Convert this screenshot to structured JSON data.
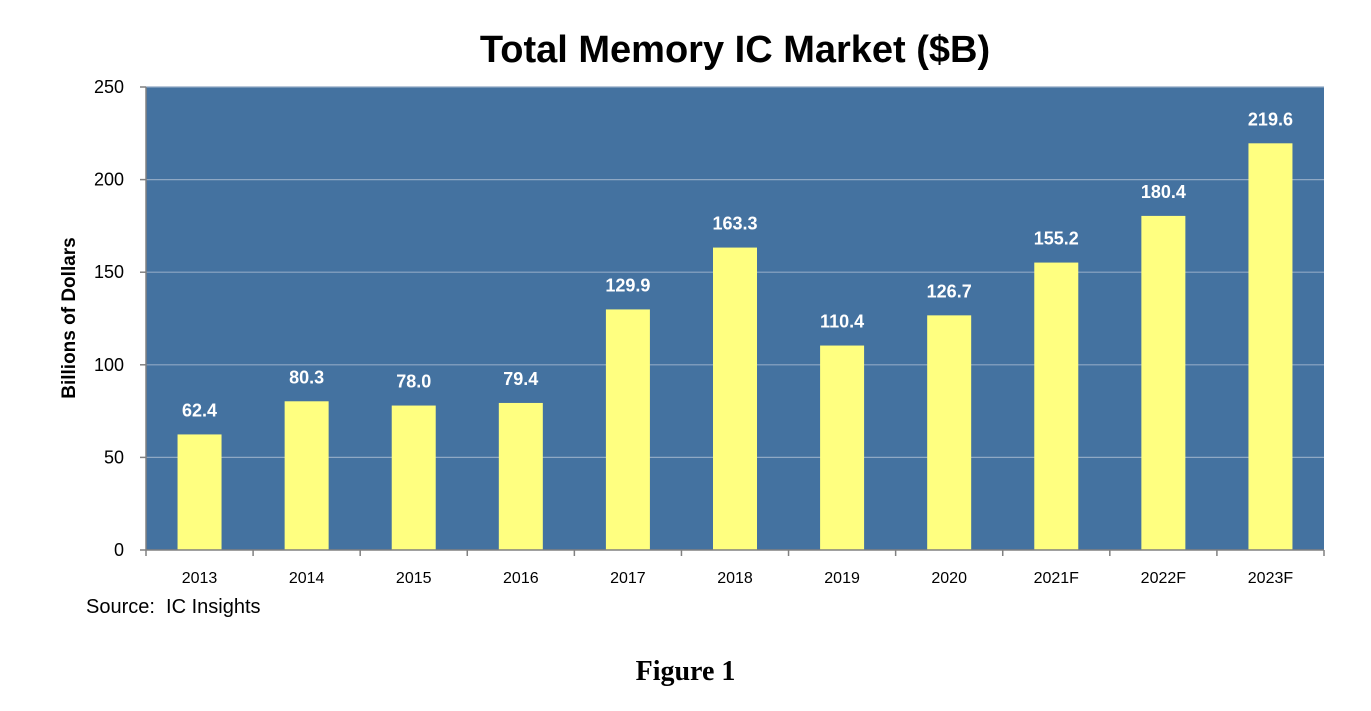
{
  "chart_data": {
    "type": "bar",
    "title": "Total Memory IC Market ($B)",
    "xlabel": "",
    "ylabel": "Billions of Dollars",
    "categories": [
      "2013",
      "2014",
      "2015",
      "2016",
      "2017",
      "2018",
      "2019",
      "2020",
      "2021F",
      "2022F",
      "2023F"
    ],
    "values": [
      62.4,
      80.3,
      78.0,
      79.4,
      129.9,
      163.3,
      110.4,
      126.7,
      155.2,
      180.4,
      219.6
    ],
    "value_labels": [
      "62.4",
      "80.3",
      "78.0",
      "79.4",
      "129.9",
      "163.3",
      "110.4",
      "126.7",
      "155.2",
      "180.4",
      "219.6"
    ],
    "ylim": [
      0,
      250
    ],
    "yticks": [
      0,
      50,
      100,
      150,
      200,
      250
    ],
    "grid": true,
    "plot_background": "#4472A0",
    "bar_color": "#FFFF80",
    "gridline_color": "#8FA8C4",
    "data_label_color": "#FFFFFF"
  },
  "source": "Source:  IC Insights",
  "caption": "Figure 1"
}
